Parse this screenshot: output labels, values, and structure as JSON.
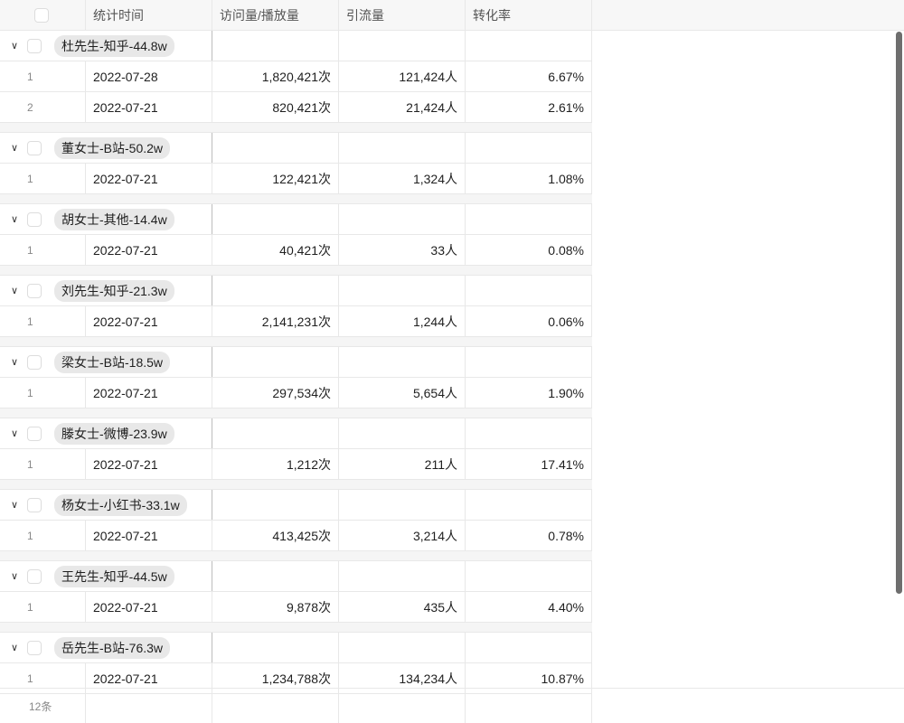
{
  "columns": [
    "统计时间",
    "访问量/播放量",
    "引流量",
    "转化率"
  ],
  "groups": [
    {
      "label": "杜先生-知乎-44.8w",
      "rows": [
        {
          "index": "1",
          "date": "2022-07-28",
          "visits": "1,820,421次",
          "traffic": "121,424人",
          "rate": "6.67%"
        },
        {
          "index": "2",
          "date": "2022-07-21",
          "visits": "820,421次",
          "traffic": "21,424人",
          "rate": "2.61%"
        }
      ]
    },
    {
      "label": "董女士-B站-50.2w",
      "rows": [
        {
          "index": "1",
          "date": "2022-07-21",
          "visits": "122,421次",
          "traffic": "1,324人",
          "rate": "1.08%"
        }
      ]
    },
    {
      "label": "胡女士-其他-14.4w",
      "rows": [
        {
          "index": "1",
          "date": "2022-07-21",
          "visits": "40,421次",
          "traffic": "33人",
          "rate": "0.08%"
        }
      ]
    },
    {
      "label": "刘先生-知乎-21.3w",
      "rows": [
        {
          "index": "1",
          "date": "2022-07-21",
          "visits": "2,141,231次",
          "traffic": "1,244人",
          "rate": "0.06%"
        }
      ]
    },
    {
      "label": "梁女士-B站-18.5w",
      "rows": [
        {
          "index": "1",
          "date": "2022-07-21",
          "visits": "297,534次",
          "traffic": "5,654人",
          "rate": "1.90%"
        }
      ]
    },
    {
      "label": "滕女士-微博-23.9w",
      "rows": [
        {
          "index": "1",
          "date": "2022-07-21",
          "visits": "1,212次",
          "traffic": "211人",
          "rate": "17.41%"
        }
      ]
    },
    {
      "label": "杨女士-小红书-33.1w",
      "rows": [
        {
          "index": "1",
          "date": "2022-07-21",
          "visits": "413,425次",
          "traffic": "3,214人",
          "rate": "0.78%"
        }
      ]
    },
    {
      "label": "王先生-知乎-44.5w",
      "rows": [
        {
          "index": "1",
          "date": "2022-07-21",
          "visits": "9,878次",
          "traffic": "435人",
          "rate": "4.40%"
        }
      ]
    },
    {
      "label": "岳先生-B站-76.3w",
      "rows": [
        {
          "index": "1",
          "date": "2022-07-21",
          "visits": "1,234,788次",
          "traffic": "134,234人",
          "rate": "10.87%"
        }
      ]
    }
  ],
  "footer": {
    "count": "12条"
  },
  "icons": {
    "group_toggle": "chevron-down-icon"
  }
}
